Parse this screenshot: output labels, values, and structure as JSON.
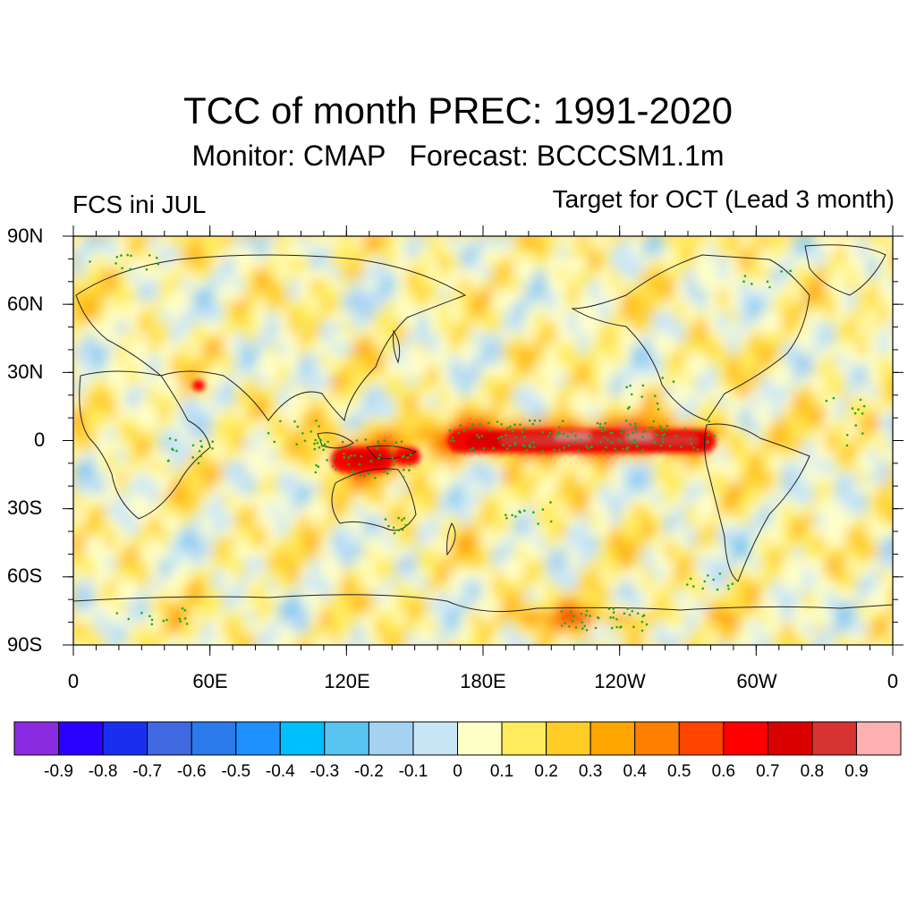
{
  "title": "TCC of month PREC: 1991-2020",
  "subtitle": "Monitor: CMAP   Forecast: BCCCSM1.1m",
  "left_label": "FCS ini JUL",
  "right_label": "Target for OCT (Lead 3 month)",
  "lat_labels": [
    "90N",
    "60N",
    "30N",
    "0",
    "30S",
    "60S",
    "90S"
  ],
  "lon_labels": [
    "0",
    "60E",
    "120E",
    "180E",
    "120W",
    "60W",
    "0"
  ],
  "colorbar": {
    "colors": [
      "#8a2be2",
      "#2a00ff",
      "#1a2ef0",
      "#4169e1",
      "#2b7bec",
      "#1e90ff",
      "#00bfff",
      "#59c3f2",
      "#a5d2f1",
      "#c9e6f7",
      "#ffffc8",
      "#ffec5c",
      "#ffcd25",
      "#ffa500",
      "#ff7f00",
      "#ff4500",
      "#ff0000",
      "#d90000",
      "#d73333",
      "#ffb0b0"
    ],
    "labels": [
      "-0.9",
      "-0.8",
      "-0.7",
      "-0.6",
      "-0.5",
      "-0.4",
      "-0.3",
      "-0.2",
      "-0.1",
      "0",
      "0.1",
      "0.2",
      "0.3",
      "0.4",
      "0.5",
      "0.6",
      "0.7",
      "0.8",
      "0.9"
    ]
  },
  "significance_dot_color": "#22aa22"
}
